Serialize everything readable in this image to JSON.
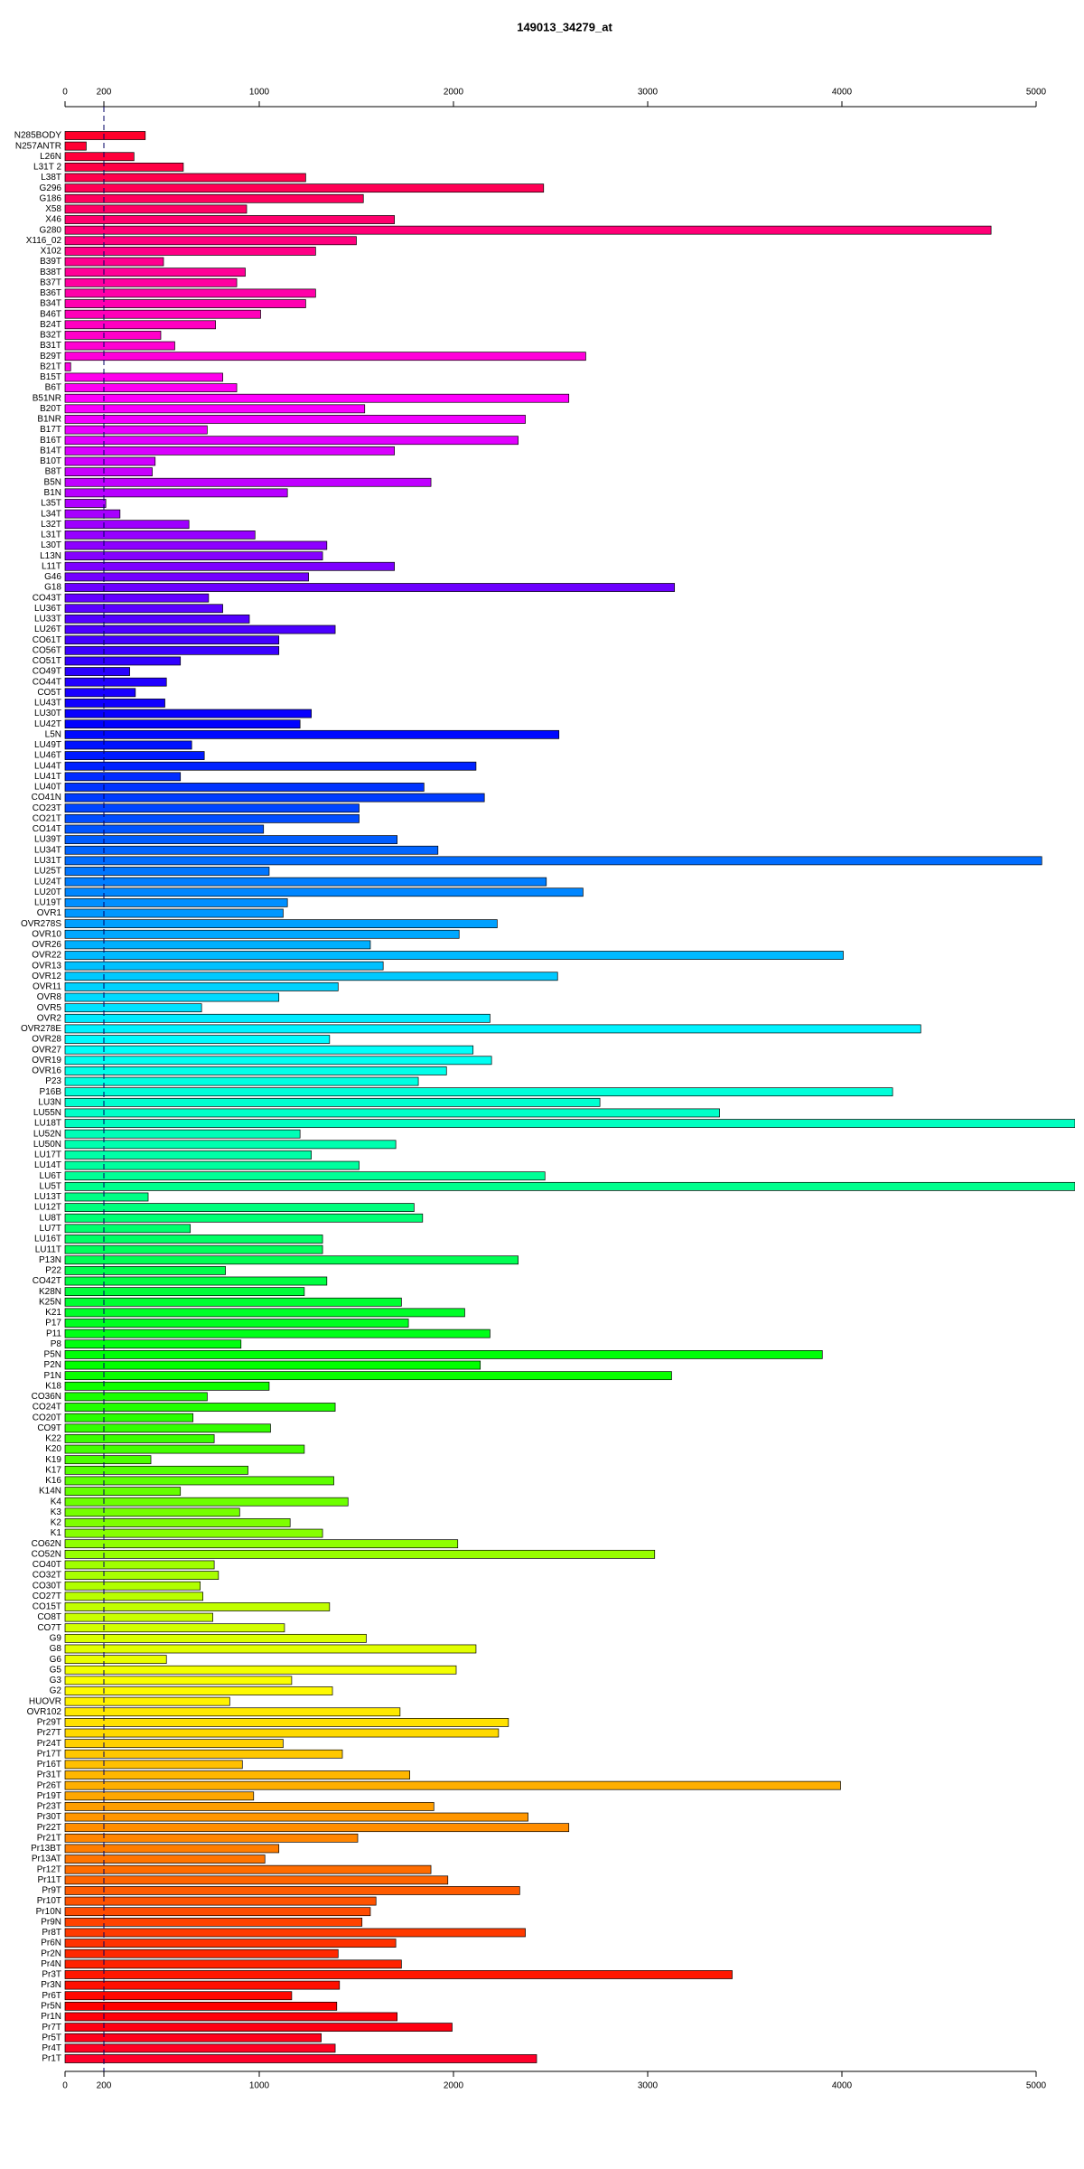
{
  "chart_data": {
    "type": "barh",
    "title": "149013_34279_at",
    "categories": [
      "N285BODY",
      "N257ANTR",
      "L26N",
      "L31T 2",
      "L38T",
      "G296",
      "G186",
      "X58",
      "X46",
      "G280",
      "X116_02",
      "X102",
      "B39T",
      "B38T",
      "B37T",
      "B36T",
      "B34T",
      "B46T",
      "B24T",
      "B32T",
      "B31T",
      "B29T",
      "B21T",
      "B15T",
      "B6T",
      "B51NR",
      "B20T",
      "B1NR",
      "B17T",
      "B16T",
      "B14T",
      "B10T",
      "B8T",
      "B5N",
      "B1N",
      "L35T",
      "L34T",
      "L32T",
      "L31T",
      "L30T",
      "L13N",
      "L11T",
      "G46",
      "G18",
      "CO43T",
      "LU36T",
      "LU33T",
      "LU26T",
      "CO61T",
      "CO56T",
      "CO51T",
      "CO49T",
      "CO44T",
      "CO5T",
      "LU43T",
      "LU30T",
      "LU42T",
      "L5N",
      "LU49T",
      "LU46T",
      "LU44T",
      "LU41T",
      "LU40T",
      "CO41N",
      "CO23T",
      "CO21T",
      "CO14T",
      "LU39T",
      "LU34T",
      "LU31T",
      "LU25T",
      "LU24T",
      "LU20T",
      "LU19T",
      "OVR1",
      "OVR278S",
      "OVR10",
      "OVR26",
      "OVR22",
      "OVR13",
      "OVR12",
      "OVR11",
      "OVR8",
      "OVR5",
      "OVR2",
      "OVR278E",
      "OVR28",
      "OVR27",
      "OVR19",
      "OVR16",
      "P23",
      "P16B",
      "LU3N",
      "LU55N",
      "LU18T",
      "LU52N",
      "LU50N",
      "LU17T",
      "LU14T",
      "LU6T",
      "LU5T",
      "LU13T",
      "LU12T",
      "LU8T",
      "LU7T",
      "LU16T",
      "LU11T",
      "P13N",
      "P22",
      "CO42T",
      "K28N",
      "K25N",
      "K21",
      "P17",
      "P11",
      "P8",
      "P5N",
      "P2N",
      "P1N",
      "K18",
      "CO36N",
      "CO24T",
      "CO20T",
      "CO9T",
      "K22",
      "K20",
      "K19",
      "K17",
      "K16",
      "K14N",
      "K4",
      "K3",
      "K2",
      "K1",
      "CO62N",
      "CO52N",
      "CO40T",
      "CO32T",
      "CO30T",
      "CO27T",
      "CO15T",
      "CO8T",
      "CO7T",
      "G9",
      "G8",
      "G6",
      "G5",
      "G3",
      "G2",
      "HUOVR",
      "OVR102",
      "Pr29T",
      "Pr27T",
      "Pr24T",
      "Pr17T",
      "Pr16T",
      "Pr31T",
      "Pr26T",
      "Pr19T",
      "Pr23T",
      "Pr30T",
      "Pr22T",
      "Pr21T",
      "Pr13BT",
      "Pr13AT",
      "Pr12T",
      "Pr11T",
      "Pr9T",
      "Pr10T",
      "Pr10N",
      "Pr9N",
      "Pr8T",
      "Pr6N",
      "Pr2N",
      "Pr4N",
      "Pr3T",
      "Pr3N",
      "Pr6T",
      "Pr5N",
      "Pr1N",
      "Pr7T",
      "Pr5T",
      "Pr4T",
      "Pr1T"
    ],
    "values": [
      413,
      109,
      355,
      609,
      1239,
      2464,
      1536,
      935,
      1696,
      4768,
      1500,
      1290,
      507,
      928,
      884,
      1290,
      1239,
      1007,
      775,
      493,
      565,
      2681,
      29,
      812,
      884,
      2594,
      1543,
      2370,
      732,
      2333,
      1696,
      464,
      449,
      1884,
      1145,
      210,
      283,
      638,
      978,
      1348,
      1326,
      1696,
      1254,
      3138,
      739,
      812,
      949,
      1391,
      1101,
      1101,
      594,
      333,
      522,
      362,
      514,
      1268,
      1210,
      2543,
      652,
      717,
      2116,
      594,
      1848,
      2159,
      1514,
      1514,
      1022,
      1710,
      1920,
      5029,
      1051,
      2478,
      2667,
      1145,
      1123,
      2225,
      2029,
      1572,
      4007,
      1638,
      2536,
      1406,
      1101,
      703,
      2188,
      4406,
      1362,
      2101,
      2196,
      1964,
      1819,
      4261,
      2754,
      3370,
      5200,
      1210,
      1703,
      1268,
      1514,
      2471,
      5200,
      428,
      1797,
      1841,
      645,
      1326,
      1326,
      2333,
      826,
      1348,
      1232,
      1732,
      2058,
      1768,
      2188,
      906,
      3899,
      2138,
      3123,
      1051,
      732,
      1391,
      659,
      1058,
      768,
      1232,
      442,
      942,
      1384,
      594,
      1457,
      899,
      1159,
      1326,
      2022,
      3036,
      768,
      790,
      696,
      710,
      1362,
      761,
      1130,
      1551,
      2116,
      522,
      2014,
      1167,
      1377,
      848,
      1725,
      2283,
      2232,
      1123,
      1428,
      913,
      1775,
      3993,
      971,
      1899,
      2384,
      2594,
      1507,
      1101,
      1029,
      1884,
      1971,
      2341,
      1601,
      1572,
      1529,
      2370,
      1703,
      1406,
      1732,
      3435,
      1413,
      1167,
      1399,
      1710,
      1993,
      1319,
      1391,
      2428
    ],
    "xlim": [
      0,
      5200
    ],
    "xticks": [
      0,
      200,
      1000,
      2000,
      3000,
      4000,
      5000
    ],
    "reference_line": 200,
    "color_hues": [
      350,
      -10
    ],
    "bar_edge_color": "#000000"
  }
}
